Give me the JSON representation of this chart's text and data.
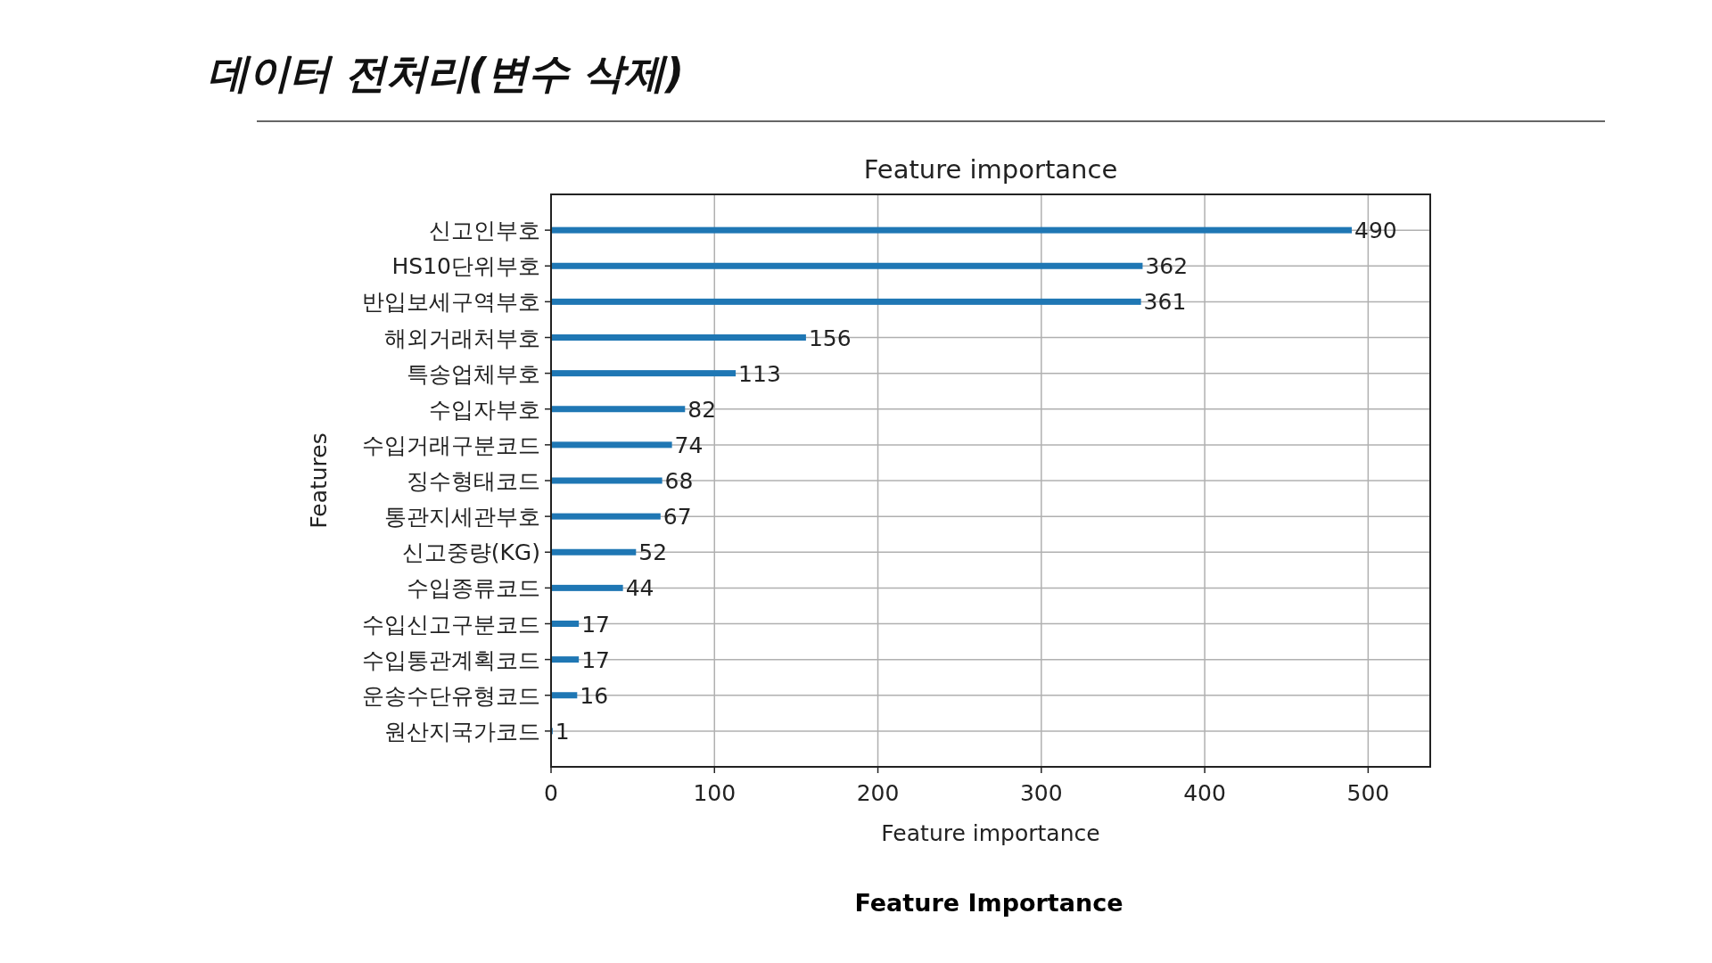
{
  "chart_data": {
    "type": "bar",
    "orientation": "horizontal",
    "title": "Feature importance",
    "xlabel": "Feature importance",
    "ylabel": "Features",
    "categories": [
      "신고인부호",
      "HS10단위부호",
      "반입보세구역부호",
      "해외거래처부호",
      "특송업체부호",
      "수입자부호",
      "수입거래구분코드",
      "징수형태코드",
      "통관지세관부호",
      "신고중량(KG)",
      "수입종류코드",
      "수입신고구분코드",
      "수입통관계획코드",
      "운송수단유형코드",
      "원산지국가코드"
    ],
    "values": [
      490,
      362,
      361,
      156,
      113,
      82,
      74,
      68,
      67,
      52,
      44,
      17,
      17,
      16,
      1
    ],
    "color": "#1f77b4",
    "xlim": [
      0,
      538
    ],
    "xticks": [
      0,
      100,
      200,
      300,
      400,
      500
    ],
    "grid": true,
    "data_labels": true,
    "annotations": [
      "데이터 전처리(변수 삭제)",
      "Feature Importance"
    ]
  }
}
